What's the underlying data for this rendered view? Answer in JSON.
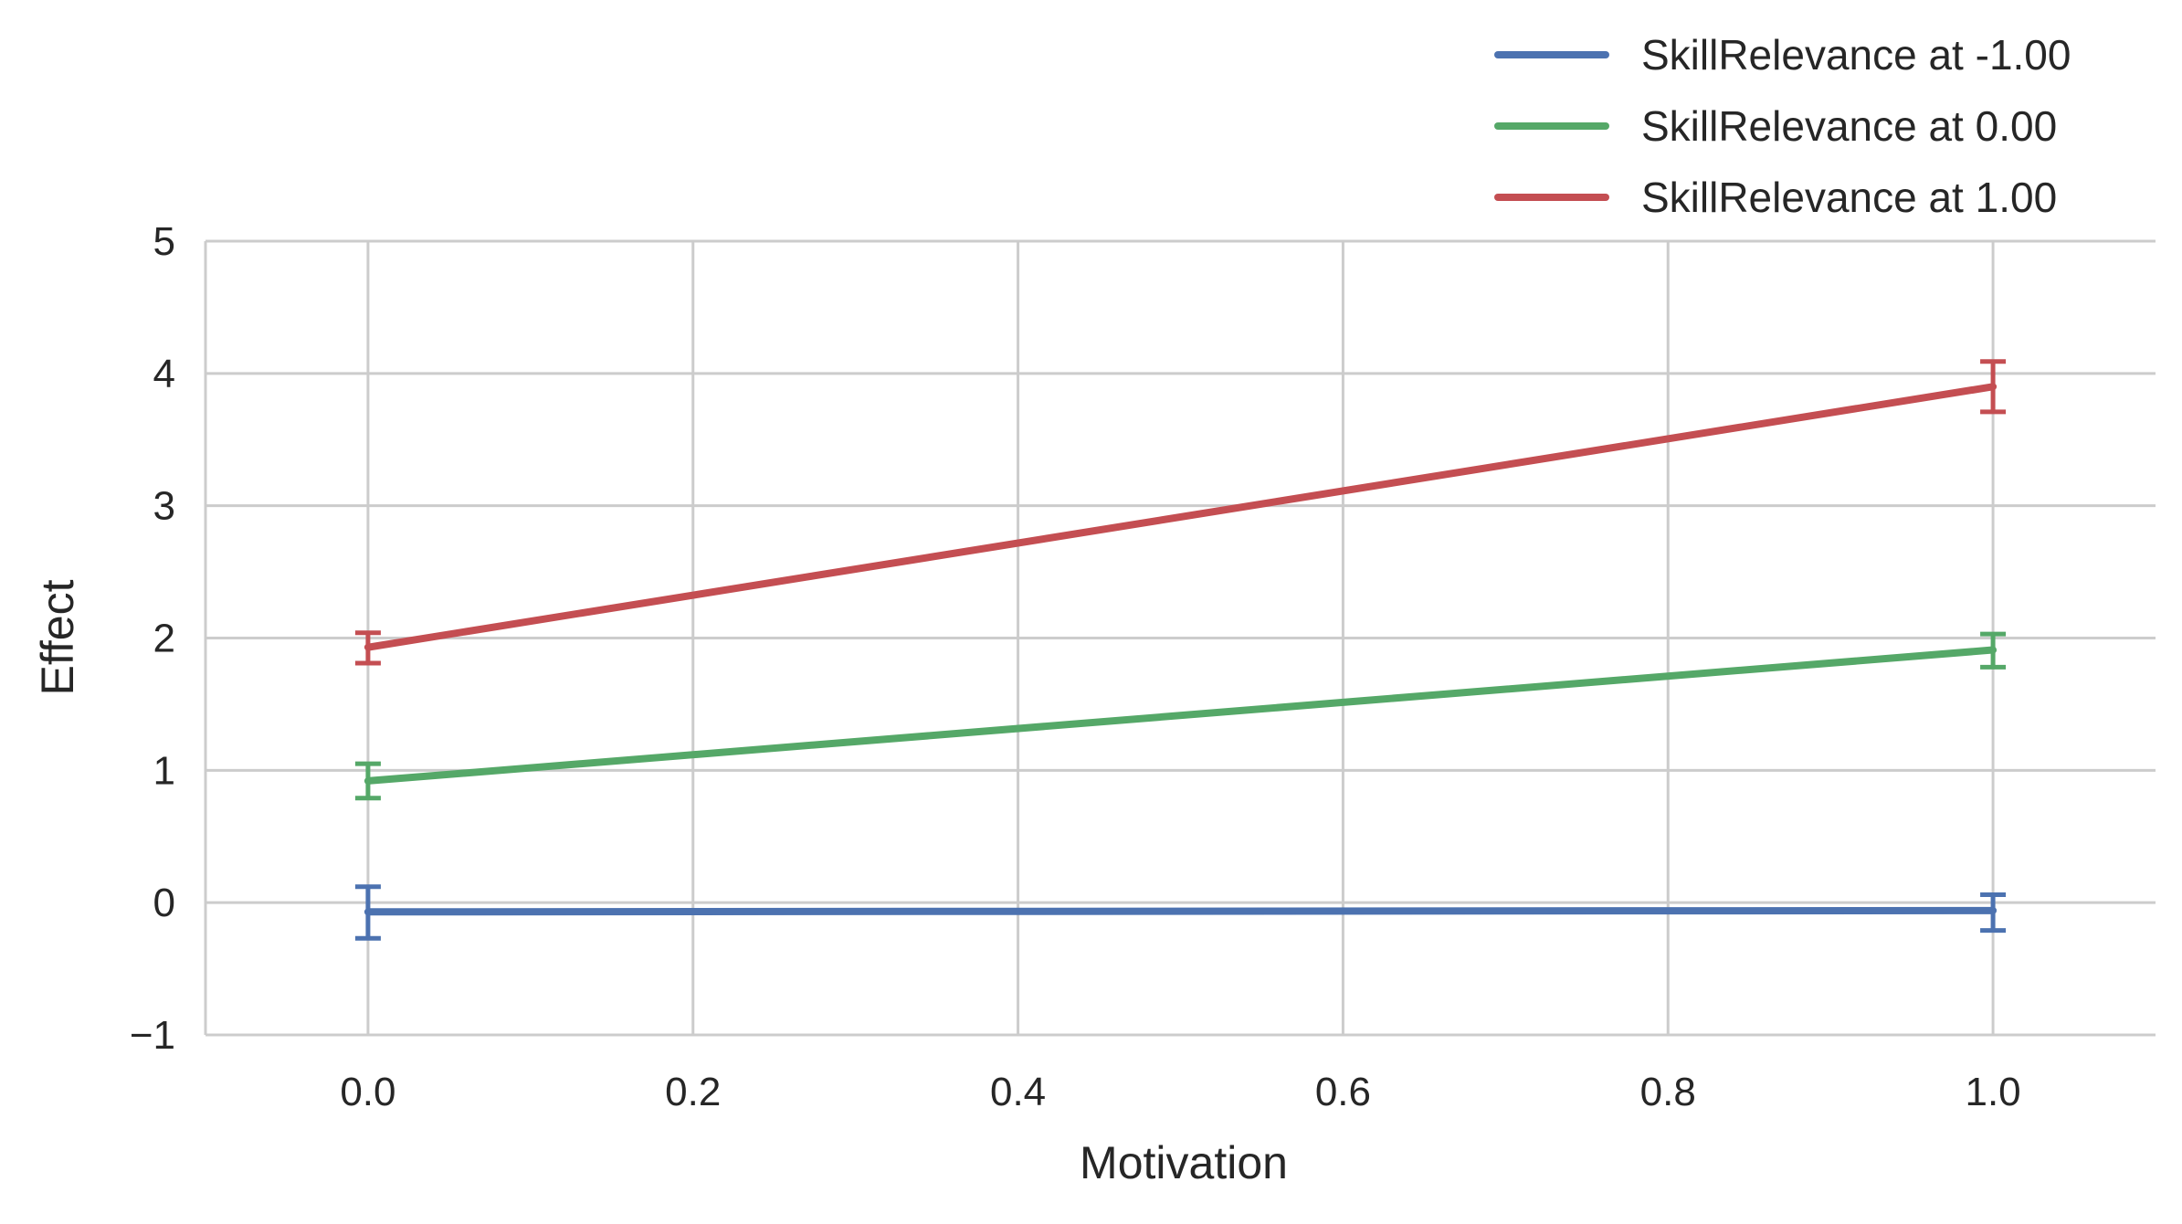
{
  "chart_data": {
    "type": "line",
    "title": "",
    "xlabel": "Motivation",
    "ylabel": "Effect",
    "xlim": [
      -0.1,
      1.1
    ],
    "ylim": [
      -1,
      5
    ],
    "xticks": [
      0.0,
      0.2,
      0.4,
      0.6,
      0.8,
      1.0
    ],
    "xtick_labels": [
      "0.0",
      "0.2",
      "0.4",
      "0.6",
      "0.8",
      "1.0"
    ],
    "yticks": [
      -1,
      0,
      1,
      2,
      3,
      4,
      5
    ],
    "ytick_labels": [
      "−1",
      "0",
      "1",
      "2",
      "3",
      "4",
      "5"
    ],
    "grid": true,
    "legend_position": "top-right",
    "x": [
      0.0,
      1.0
    ],
    "series": [
      {
        "name": "SkillRelevance at -1.00",
        "color": "#4c72b0",
        "values": [
          -0.07,
          -0.06
        ],
        "error_low": [
          -0.27,
          -0.21
        ],
        "error_high": [
          0.12,
          0.06
        ]
      },
      {
        "name": "SkillRelevance at 0.00",
        "color": "#55a868",
        "values": [
          0.92,
          1.91
        ],
        "error_low": [
          0.79,
          1.78
        ],
        "error_high": [
          1.05,
          2.03
        ]
      },
      {
        "name": "SkillRelevance at 1.00",
        "color": "#c44e52",
        "values": [
          1.93,
          3.9
        ],
        "error_low": [
          1.81,
          3.71
        ],
        "error_high": [
          2.04,
          4.09
        ]
      }
    ]
  }
}
